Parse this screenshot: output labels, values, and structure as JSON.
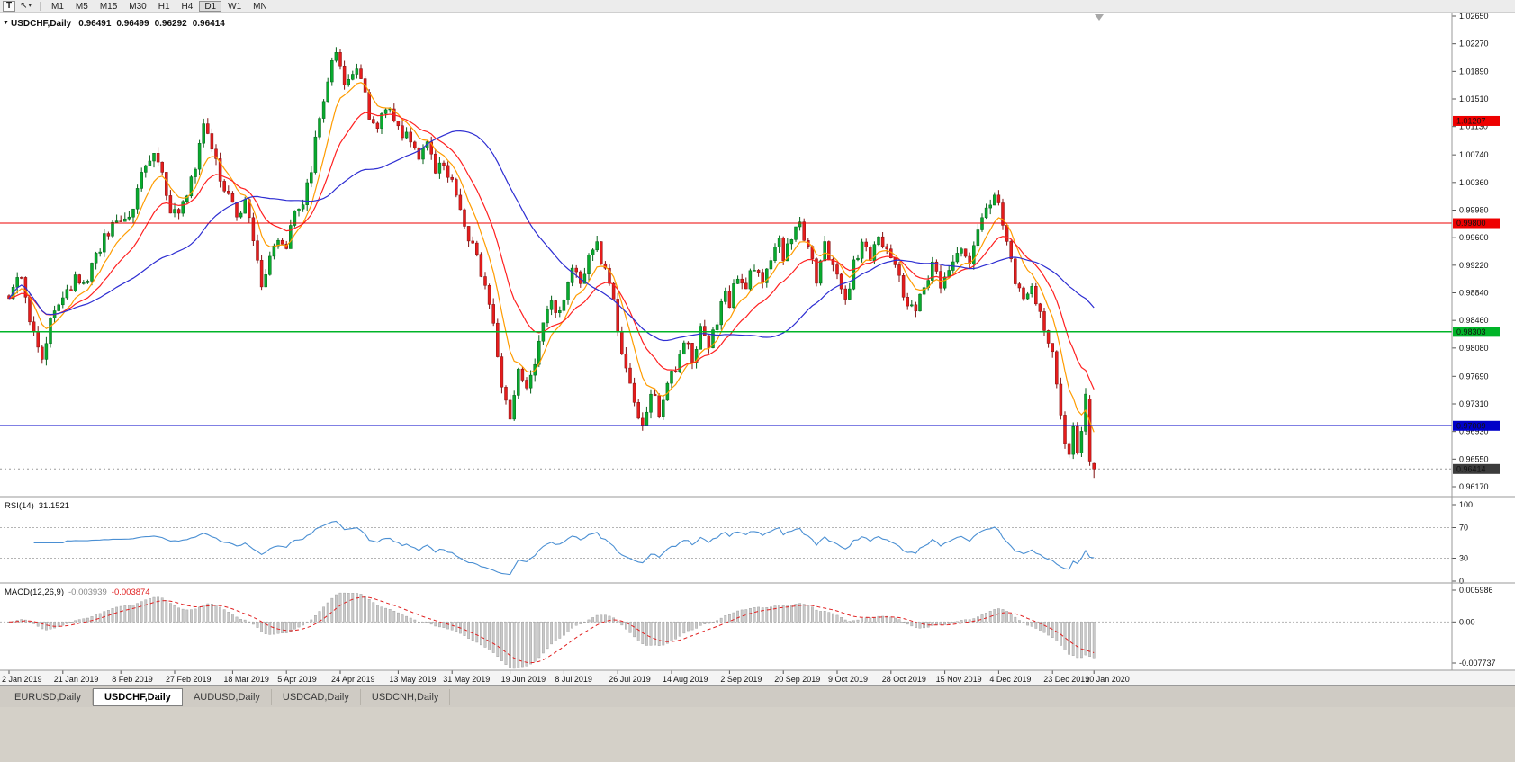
{
  "icons": {
    "collapse": "▼",
    "cursor": "↖",
    "caret": "▾"
  },
  "toolbar": {
    "t_button": "T",
    "timeframes": [
      "M1",
      "M5",
      "M15",
      "M30",
      "H1",
      "H4",
      "D1",
      "W1",
      "MN"
    ],
    "active_timeframe": "D1"
  },
  "chart_data": {
    "type": "candlestick",
    "title": "USDCHF,Daily",
    "symbol": "USDCHF",
    "timeframe": "Daily",
    "ohlc_current": {
      "open": "0.96491",
      "high": "0.96499",
      "low": "0.96292",
      "close": "0.96414"
    },
    "price_axis_ticks": [
      "1.02650",
      "1.02270",
      "1.01890",
      "1.01510",
      "1.01130",
      "1.00740",
      "1.00360",
      "0.99980",
      "0.99600",
      "0.99220",
      "0.98840",
      "0.98460",
      "0.98080",
      "0.97690",
      "0.97310",
      "0.96930",
      "0.96550",
      "0.96170"
    ],
    "price_range": {
      "max": 1.0265,
      "min": 0.9617
    },
    "x_dates": [
      [
        "2 Jan 2019",
        0
      ],
      [
        "21 Jan 2019",
        13
      ],
      [
        "8 Feb 2019",
        27
      ],
      [
        "27 Feb 2019",
        40
      ],
      [
        "18 Mar 2019",
        54
      ],
      [
        "5 Apr 2019",
        67
      ],
      [
        "24 Apr 2019",
        80
      ],
      [
        "13 May 2019",
        94
      ],
      [
        "31 May 2019",
        107
      ],
      [
        "19 Jun 2019",
        121
      ],
      [
        "8 Jul 2019",
        134
      ],
      [
        "26 Jul 2019",
        147
      ],
      [
        "14 Aug 2019",
        160
      ],
      [
        "2 Sep 2019",
        174
      ],
      [
        "20 Sep 2019",
        187
      ],
      [
        "9 Oct 2019",
        200
      ],
      [
        "28 Oct 2019",
        213
      ],
      [
        "15 Nov 2019",
        226
      ],
      [
        "4 Dec 2019",
        239
      ],
      [
        "23 Dec 2019",
        252
      ],
      [
        "10 Jan 2020",
        262
      ]
    ],
    "hlines": [
      {
        "price": 1.01207,
        "label": "1.01207",
        "color": "#ee0000"
      },
      {
        "price": 0.998,
        "label": "0.99800",
        "color": "#ee0000"
      },
      {
        "price": 0.98303,
        "label": "0.98303",
        "color": "#00b428"
      },
      {
        "price": 0.97009,
        "label": "0.97009",
        "color": "#0000c8"
      }
    ],
    "bid_line": {
      "price": 0.96414,
      "label": "0.96414",
      "color": "#3c3c3c"
    },
    "candles": {
      "count": 263,
      "seed": 11,
      "noise": 0.0009,
      "wick": 0.0009,
      "up_fill": "#08aa2e",
      "up_stroke": "#046018",
      "down_fill": "#e51c1c",
      "down_stroke": "#801010",
      "anchors": [
        [
          0,
          0.988
        ],
        [
          3,
          0.9908
        ],
        [
          5,
          0.9845
        ],
        [
          8,
          0.9798
        ],
        [
          10,
          0.9846
        ],
        [
          13,
          0.9872
        ],
        [
          16,
          0.9906
        ],
        [
          18,
          0.9892
        ],
        [
          21,
          0.9938
        ],
        [
          24,
          0.9968
        ],
        [
          26,
          0.9992
        ],
        [
          28,
          0.9978
        ],
        [
          30,
          1.0002
        ],
        [
          33,
          1.0062
        ],
        [
          35,
          1.0077
        ],
        [
          37,
          1.0042
        ],
        [
          39,
          1.0002
        ],
        [
          41,
          0.9992
        ],
        [
          43,
          1.0012
        ],
        [
          45,
          1.0058
        ],
        [
          47,
          1.0124
        ],
        [
          49,
          1.0082
        ],
        [
          51,
          1.0042
        ],
        [
          53,
          1.0012
        ],
        [
          55,
          0.9992
        ],
        [
          57,
          1.0006
        ],
        [
          59,
          0.9952
        ],
        [
          61,
          0.9896
        ],
        [
          63,
          0.9932
        ],
        [
          65,
          0.9962
        ],
        [
          67,
          0.9946
        ],
        [
          69,
          0.9992
        ],
        [
          71,
          1.0012
        ],
        [
          73,
          1.0052
        ],
        [
          75,
          1.0128
        ],
        [
          77,
          1.0182
        ],
        [
          79,
          1.0224
        ],
        [
          81,
          1.0162
        ],
        [
          83,
          1.0194
        ],
        [
          85,
          1.0186
        ],
        [
          87,
          1.0132
        ],
        [
          89,
          1.0112
        ],
        [
          91,
          1.0142
        ],
        [
          93,
          1.0126
        ],
        [
          95,
          1.0106
        ],
        [
          97,
          1.0092
        ],
        [
          99,
          1.0072
        ],
        [
          101,
          1.0086
        ],
        [
          103,
          1.0052
        ],
        [
          105,
          1.0066
        ],
        [
          107,
          1.0032
        ],
        [
          109,
          0.9992
        ],
        [
          111,
          0.9962
        ],
        [
          113,
          0.9932
        ],
        [
          115,
          0.9892
        ],
        [
          117,
          0.9842
        ],
        [
          119,
          0.9752
        ],
        [
          121,
          0.9706
        ],
        [
          123,
          0.9772
        ],
        [
          125,
          0.9746
        ],
        [
          127,
          0.9792
        ],
        [
          129,
          0.9842
        ],
        [
          131,
          0.9872
        ],
        [
          133,
          0.9856
        ],
        [
          134,
          0.9882
        ],
        [
          136,
          0.9922
        ],
        [
          138,
          0.9896
        ],
        [
          140,
          0.9936
        ],
        [
          142,
          0.9952
        ],
        [
          144,
          0.9912
        ],
        [
          146,
          0.9872
        ],
        [
          147,
          0.9822
        ],
        [
          149,
          0.9772
        ],
        [
          151,
          0.9732
        ],
        [
          153,
          0.9706
        ],
        [
          155,
          0.9746
        ],
        [
          157,
          0.9722
        ],
        [
          159,
          0.9766
        ],
        [
          161,
          0.9782
        ],
        [
          163,
          0.9822
        ],
        [
          165,
          0.9796
        ],
        [
          167,
          0.9832
        ],
        [
          169,
          0.9812
        ],
        [
          171,
          0.9846
        ],
        [
          173,
          0.9882
        ],
        [
          174,
          0.9872
        ],
        [
          176,
          0.9906
        ],
        [
          178,
          0.9892
        ],
        [
          180,
          0.9922
        ],
        [
          182,
          0.9896
        ],
        [
          184,
          0.9932
        ],
        [
          186,
          0.9952
        ],
        [
          187,
          0.9936
        ],
        [
          189,
          0.9962
        ],
        [
          191,
          0.9976
        ],
        [
          193,
          0.9942
        ],
        [
          195,
          0.9906
        ],
        [
          197,
          0.9952
        ],
        [
          199,
          0.9926
        ],
        [
          200,
          0.9906
        ],
        [
          202,
          0.9872
        ],
        [
          204,
          0.9922
        ],
        [
          206,
          0.9952
        ],
        [
          208,
          0.9932
        ],
        [
          210,
          0.9966
        ],
        [
          212,
          0.9942
        ],
        [
          213,
          0.9932
        ],
        [
          215,
          0.9902
        ],
        [
          217,
          0.9872
        ],
        [
          219,
          0.9852
        ],
        [
          221,
          0.9896
        ],
        [
          223,
          0.9922
        ],
        [
          225,
          0.9892
        ],
        [
          226,
          0.9906
        ],
        [
          228,
          0.9932
        ],
        [
          230,
          0.9952
        ],
        [
          232,
          0.9926
        ],
        [
          234,
          0.9962
        ],
        [
          236,
          1.0002
        ],
        [
          238,
          1.0022
        ],
        [
          239,
          1.0006
        ],
        [
          241,
          0.9952
        ],
        [
          243,
          0.9896
        ],
        [
          245,
          0.9872
        ],
        [
          247,
          0.9892
        ],
        [
          249,
          0.9852
        ],
        [
          251,
          0.9822
        ],
        [
          252,
          0.9802
        ],
        [
          254,
          0.9722
        ],
        [
          255,
          0.9682
        ],
        [
          256,
          0.9666
        ],
        [
          257,
          0.9692
        ],
        [
          258,
          0.9662
        ],
        [
          259,
          0.9702
        ],
        [
          260,
          0.9738
        ],
        [
          261,
          0.9652
        ],
        [
          262,
          0.96414
        ]
      ],
      "overrides": {
        "261": [
          0.9738,
          0.97432,
          0.96458,
          0.96522
        ],
        "262": [
          0.96491,
          0.96499,
          0.96292,
          0.96414
        ]
      }
    },
    "moving_averages": [
      {
        "name": "fast",
        "method": "ema",
        "period": 8,
        "color": "#ff9c00"
      },
      {
        "name": "medium",
        "method": "ema",
        "period": 18,
        "color": "#ff2020"
      },
      {
        "name": "slow",
        "method": "sma",
        "period": 40,
        "color": "#2e2ed2"
      }
    ],
    "rsi": {
      "label": "RSI(14)",
      "value": "31.1521",
      "period": 14,
      "color": "#4a8fd3",
      "axis_labels": [
        "100",
        "70",
        "30",
        "0"
      ],
      "dotted_levels": [
        70,
        30
      ]
    },
    "macd": {
      "label": "MACD(12,26,9)",
      "value_main": "-0.003939",
      "value_signal": "-0.003874",
      "fast": 12,
      "slow": 26,
      "signal": 9,
      "axis_labels": [
        "0.005986",
        "0.00",
        "-0.007737"
      ],
      "axis_max": 0.005986,
      "axis_min": -0.007737,
      "hist_fill": "#c9c9c9",
      "hist_stroke": "#9a9a9a",
      "signal_color": "#e02020"
    }
  },
  "tabs": {
    "items": [
      "EURUSD,Daily",
      "USDCHF,Daily",
      "AUDUSD,Daily",
      "USDCAD,Daily",
      "USDCNH,Daily"
    ],
    "active_index": 1
  }
}
